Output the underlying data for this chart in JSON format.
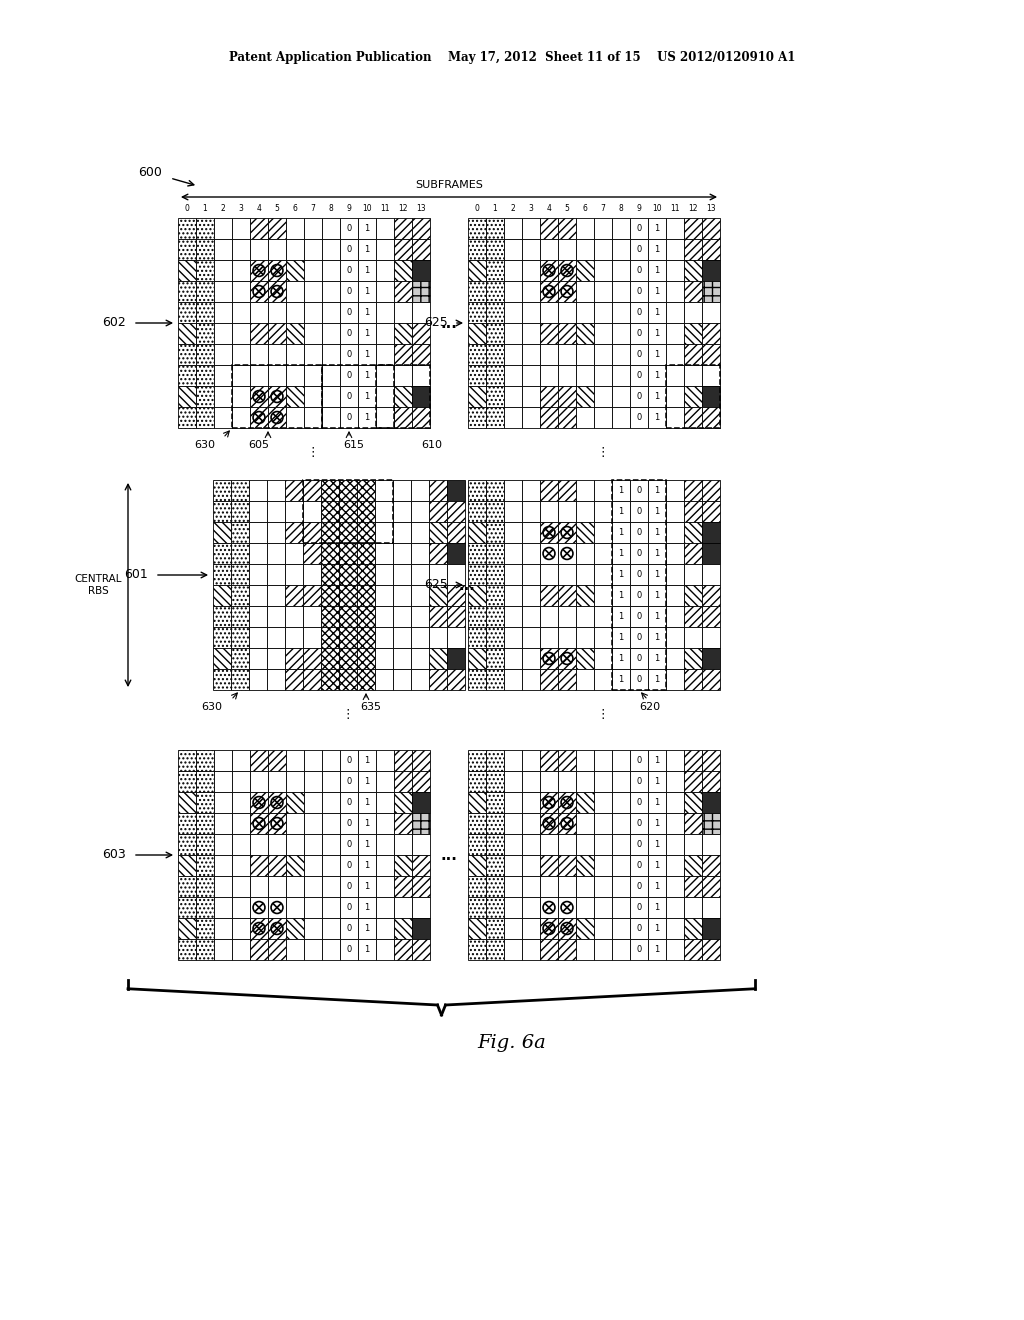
{
  "header": "Patent Application Publication    May 17, 2012  Sheet 11 of 15    US 2012/0120910 A1",
  "fig_label": "Fig. 6a",
  "bg": "#ffffff",
  "label_600": "600",
  "label_601": "601",
  "label_602": "602",
  "label_603": "603",
  "label_605": "605",
  "label_610": "610",
  "label_615": "615",
  "label_620": "620",
  "label_625": "625",
  "label_630": "630",
  "label_635": "635",
  "subframes_text": "SUBFRAMES",
  "central_rbs_text": "CENTRAL\nRBS",
  "ellipsis": "..."
}
